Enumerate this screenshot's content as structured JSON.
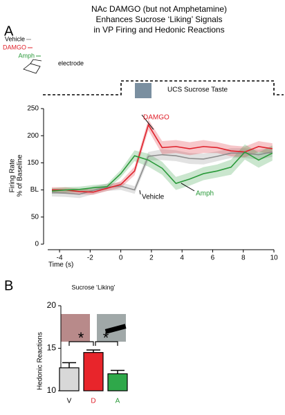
{
  "panels": [
    "A",
    "B"
  ],
  "header": {
    "title_lines": [
      "NAc DAMGO (but not Amphetamine)",
      "Enhances Sucrose ‘Liking’ Signals",
      "in VP Firing and Hedonic Reactions"
    ]
  },
  "electrode_label": "electrode",
  "stimulus_label": "UCS Sucrose Taste",
  "chart_data": [
    {
      "type": "line",
      "ylabel_lines": [
        "Firing Rate",
        "% of Baseline"
      ],
      "xlabel": "Time (s)",
      "x": [
        -4.5,
        -3.6,
        -2.7,
        -1.8,
        -0.9,
        0,
        0.9,
        1.8,
        2.7,
        3.6,
        4.5,
        5.4,
        6.3,
        7.2,
        8.1,
        9,
        9.9
      ],
      "series": [
        {
          "name": "Vehicle",
          "color": "#8c8c8c",
          "values": [
            95,
            94,
            92,
            99,
            105,
            107,
            100,
            162,
            165,
            163,
            158,
            157,
            162,
            168,
            168,
            165,
            170
          ],
          "errors": [
            7,
            7,
            7,
            7,
            7,
            7,
            7,
            8,
            10,
            10,
            10,
            10,
            9,
            9,
            9,
            9,
            9
          ]
        },
        {
          "name": "DAMGO",
          "color": "#e0202a",
          "values": [
            100,
            100,
            97,
            96,
            103,
            110,
            135,
            220,
            178,
            180,
            176,
            180,
            178,
            172,
            170,
            180,
            176
          ],
          "errors": [
            5,
            5,
            5,
            5,
            5,
            6,
            8,
            10,
            12,
            12,
            12,
            12,
            10,
            10,
            10,
            10,
            10
          ]
        },
        {
          "name": "Amph",
          "color": "#2a9a3a",
          "values": [
            98,
            100,
            101,
            104,
            106,
            130,
            163,
            155,
            140,
            112,
            120,
            130,
            135,
            142,
            170,
            155,
            168
          ],
          "errors": [
            5,
            5,
            5,
            5,
            5,
            7,
            10,
            12,
            12,
            12,
            12,
            12,
            12,
            14,
            14,
            14,
            14
          ]
        }
      ],
      "xlim": [
        -4.5,
        10
      ],
      "xticks": [
        -4,
        -2,
        0,
        2,
        4,
        6,
        8,
        10
      ],
      "ylim": [
        0,
        250
      ],
      "yticks": [
        0,
        50,
        {
          "value": 100,
          "label": "BL"
        },
        150,
        200,
        250
      ]
    },
    {
      "type": "bar",
      "title": "Sucrose ‘Liking’",
      "ylabel": "Hedonic Reactions",
      "categories": [
        "V",
        "D",
        "A"
      ],
      "values": [
        12.7,
        14.5,
        12.0
      ],
      "errors": [
        0.6,
        0.3,
        0.4
      ],
      "colors": [
        "#d8d8d8",
        "#e8252b",
        "#2fa84a"
      ],
      "label_colors": [
        "#000000",
        "#e0202a",
        "#2a9a3a"
      ],
      "ylim": [
        10,
        20
      ],
      "yticks": [
        10,
        15,
        20
      ],
      "annotations": [
        "*",
        "*"
      ]
    }
  ]
}
